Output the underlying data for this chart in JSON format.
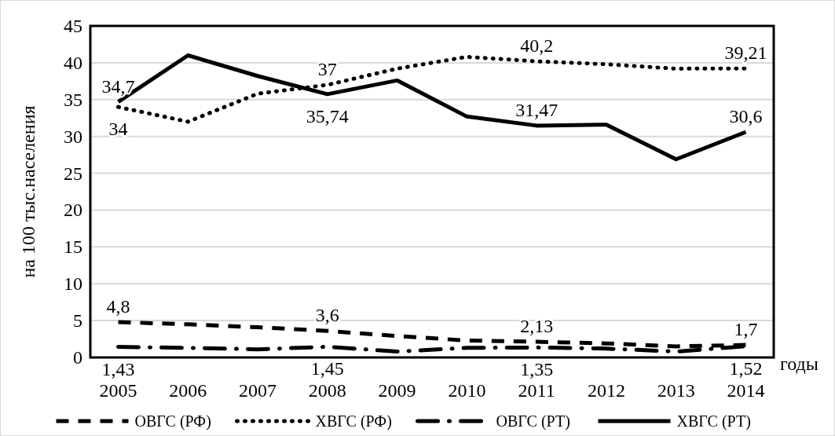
{
  "chart_data": {
    "type": "line",
    "ylabel": "на 100 тыс.населения",
    "xlabel": "годы",
    "categories": [
      "2005",
      "2006",
      "2007",
      "2008",
      "2009",
      "2010",
      "2011",
      "2012",
      "2013",
      "2014"
    ],
    "ylim": [
      0,
      45
    ],
    "yticks": [
      0,
      5,
      10,
      15,
      20,
      25,
      30,
      35,
      40,
      45
    ],
    "grid": "y",
    "legend": "bottom",
    "marker": "none",
    "series": [
      {
        "name": "ОВГС (РФ)",
        "color": "#000000",
        "line_style": "dashed",
        "values": [
          4.8,
          4.5,
          4.1,
          3.6,
          2.9,
          2.3,
          2.13,
          1.9,
          1.5,
          1.7
        ],
        "value_labels": [
          "4,8",
          null,
          null,
          "3,6",
          null,
          null,
          "2,13",
          null,
          null,
          "1,7"
        ]
      },
      {
        "name": "ХВГС (РФ)",
        "color": "#000000",
        "line_style": "dotted",
        "values": [
          34,
          32,
          35.8,
          37,
          39.2,
          40.8,
          40.2,
          39.8,
          39.2,
          39.21
        ],
        "value_labels": [
          "34",
          null,
          null,
          "37",
          null,
          null,
          "40,2",
          null,
          null,
          "39,21"
        ]
      },
      {
        "name": "ОВГС (РТ)",
        "color": "#000000",
        "line_style": "dashdot",
        "values": [
          1.43,
          1.3,
          1.1,
          1.45,
          0.8,
          1.3,
          1.35,
          1.2,
          0.8,
          1.52
        ],
        "value_labels": [
          "1,43",
          null,
          null,
          "1,45",
          null,
          null,
          "1,35",
          null,
          null,
          "1,52"
        ]
      },
      {
        "name": "ХВГС (РТ)",
        "color": "#000000",
        "line_style": "solid",
        "values": [
          34.7,
          41,
          38.2,
          35.74,
          37.6,
          32.7,
          31.47,
          31.6,
          26.9,
          30.6
        ],
        "value_labels": [
          "34,7",
          null,
          null,
          "35,74",
          null,
          null,
          "31,47",
          null,
          null,
          "30,6"
        ]
      }
    ]
  }
}
